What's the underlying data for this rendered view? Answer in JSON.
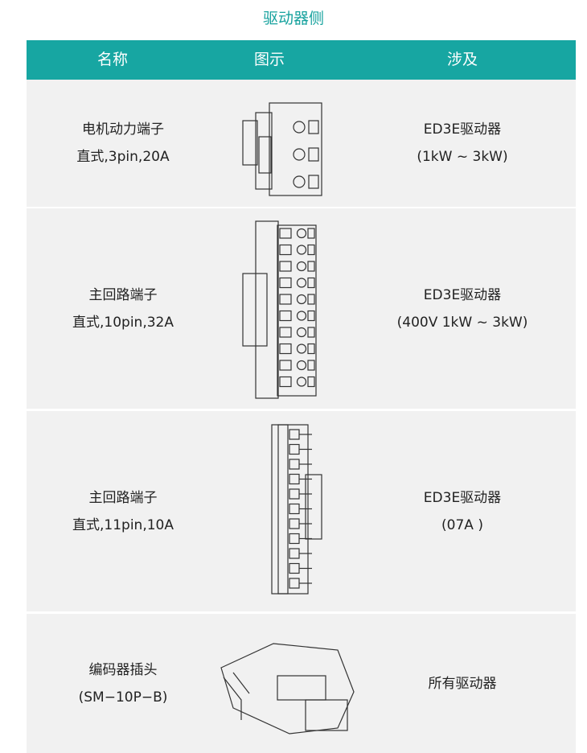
{
  "header": {
    "title": "驱动器侧"
  },
  "table": {
    "columns": [
      "名称",
      "图示",
      "涉及"
    ],
    "rows": [
      {
        "name": [
          "电机动力端子",
          "直式,3pin,20A"
        ],
        "applies": [
          "ED3E驱动器",
          "(1kW ~ 3kW)"
        ]
      },
      {
        "name": [
          "主回路端子",
          "直式,10pin,32A"
        ],
        "applies": [
          "ED3E驱动器",
          "(400V 1kW ~ 3kW)"
        ]
      },
      {
        "name": [
          "主回路端子",
          "直式,11pin,10A"
        ],
        "applies": [
          "ED3E驱动器",
          "(07A )"
        ]
      },
      {
        "name": [
          "编码器插头",
          "(SM−10P−B)"
        ],
        "applies": [
          "所有驱动器"
        ]
      }
    ]
  }
}
